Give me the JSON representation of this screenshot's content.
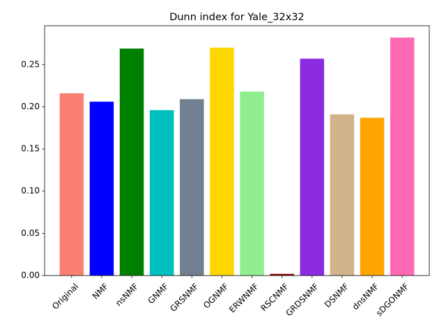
{
  "chart_data": {
    "type": "bar",
    "title": "Dunn index for Yale_32x32",
    "xlabel": "",
    "ylabel": "",
    "categories": [
      "Original",
      "NMF",
      "nsNMF",
      "GNMF",
      "GRSNMF",
      "OGNMF",
      "ERWNMF",
      "RSCNMF",
      "GRDSNMF",
      "DSNMF",
      "dnsNMF",
      "sDGONMF"
    ],
    "values": [
      0.216,
      0.206,
      0.269,
      0.196,
      0.209,
      0.27,
      0.218,
      0.002,
      0.257,
      0.191,
      0.187,
      0.282
    ],
    "colors": [
      "#fa8072",
      "#0000ff",
      "#008000",
      "#00bfbf",
      "#708090",
      "#ffd700",
      "#90ee90",
      "#8b0000",
      "#8a2be2",
      "#d2b48c",
      "#ffa500",
      "#ff69b4"
    ],
    "yticks": [
      0.0,
      0.05,
      0.1,
      0.15,
      0.2,
      0.25
    ],
    "ytick_labels": [
      "0.00",
      "0.05",
      "0.10",
      "0.15",
      "0.20",
      "0.25"
    ],
    "ylim": [
      0,
      0.296
    ],
    "grid": false,
    "legend": "none"
  }
}
